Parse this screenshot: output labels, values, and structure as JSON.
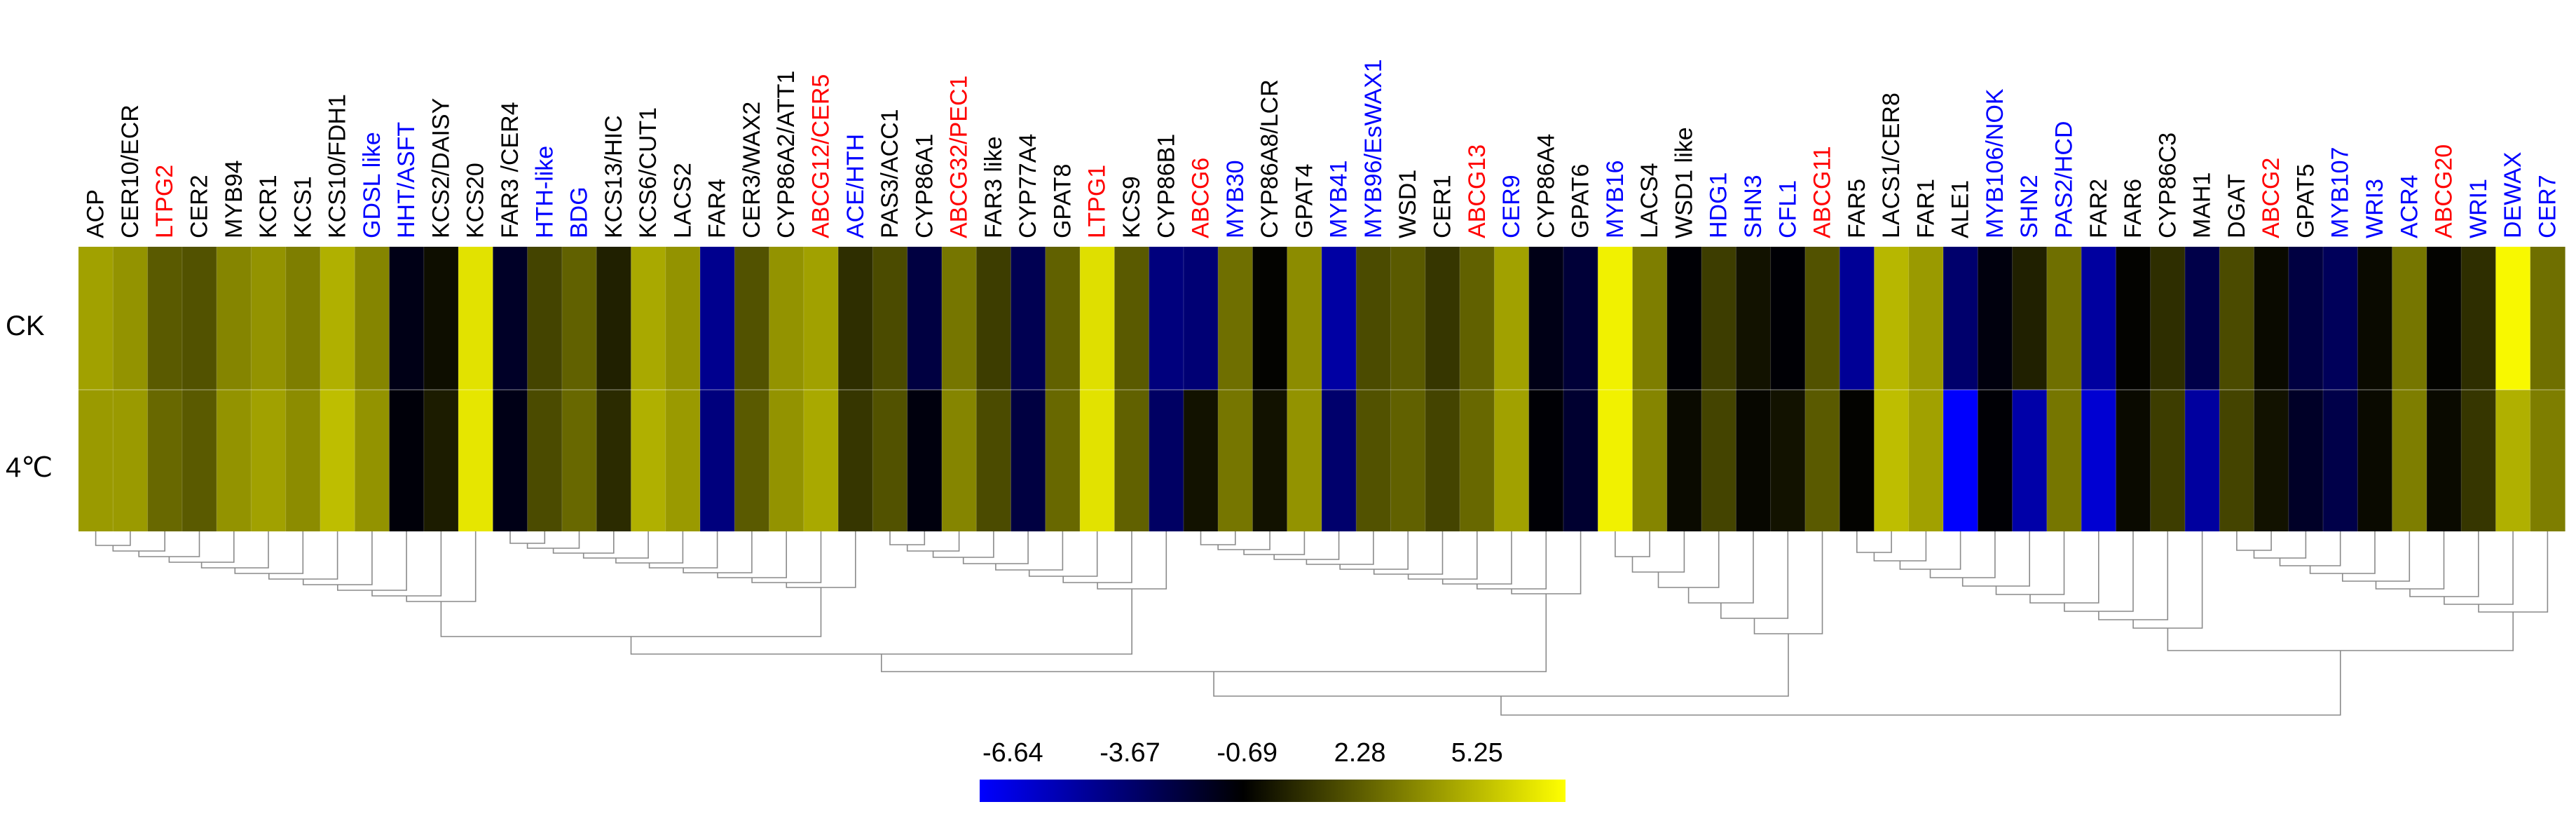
{
  "chart_data": {
    "type": "heatmap",
    "rows": [
      "CK",
      "4℃"
    ],
    "columns": [
      {
        "name": "ACP",
        "color": "black",
        "ck": 3.8,
        "cold": 3.6
      },
      {
        "name": "CER10/ECR",
        "color": "black",
        "ck": 3.4,
        "cold": 3.6
      },
      {
        "name": "LTPG2",
        "color": "red",
        "ck": 1.8,
        "cold": 2.2
      },
      {
        "name": "CER2",
        "color": "black",
        "ck": 1.6,
        "cold": 1.8
      },
      {
        "name": "MYB94",
        "color": "black",
        "ck": 3.0,
        "cold": 3.4
      },
      {
        "name": "KCR1",
        "color": "black",
        "ck": 3.4,
        "cold": 3.8
      },
      {
        "name": "KCS1",
        "color": "black",
        "ck": 2.8,
        "cold": 3.2
      },
      {
        "name": "KCS10/FDH1",
        "color": "black",
        "ck": 4.2,
        "cold": 4.6
      },
      {
        "name": "GDSL like",
        "color": "blue",
        "ck": 3.0,
        "cold": 3.4
      },
      {
        "name": "HHT/ASFT",
        "color": "blue",
        "ck": -1.2,
        "cold": -0.9
      },
      {
        "name": "KCS2/DAISY",
        "color": "black",
        "ck": -0.3,
        "cold": 0.1
      },
      {
        "name": "KCS20",
        "color": "black",
        "ck": 5.6,
        "cold": 5.7
      },
      {
        "name": "FAR3 /CER4",
        "color": "black",
        "ck": -1.6,
        "cold": -1.2
      },
      {
        "name": "HTH-like",
        "color": "blue",
        "ck": 1.2,
        "cold": 1.4
      },
      {
        "name": "BDG",
        "color": "blue",
        "ck": 2.0,
        "cold": 2.2
      },
      {
        "name": "KCS13/HIC",
        "color": "black",
        "ck": 0.2,
        "cold": 0.5
      },
      {
        "name": "KCS6/CUT1",
        "color": "black",
        "ck": 4.0,
        "cold": 4.2
      },
      {
        "name": "LACS2",
        "color": "black",
        "ck": 3.4,
        "cold": 3.6
      },
      {
        "name": "FAR4",
        "color": "black",
        "ck": -4.0,
        "cold": -3.6
      },
      {
        "name": "CER3/WAX2",
        "color": "black",
        "ck": 1.6,
        "cold": 1.8
      },
      {
        "name": "CYP86A2/ATT1",
        "color": "black",
        "ck": 3.4,
        "cold": 3.4
      },
      {
        "name": "ABCG12/CER5",
        "color": "red",
        "ck": 3.8,
        "cold": 4.0
      },
      {
        "name": "ACE/HTH",
        "color": "blue",
        "ck": 0.6,
        "cold": 0.8
      },
      {
        "name": "PAS3/ACC1",
        "color": "black",
        "ck": 1.4,
        "cold": 1.6
      },
      {
        "name": "CYP86A1",
        "color": "black",
        "ck": -2.2,
        "cold": -1.0
      },
      {
        "name": "ABCG32/PEC1",
        "color": "red",
        "ck": 2.6,
        "cold": 3.0
      },
      {
        "name": "FAR3 like",
        "color": "black",
        "ck": 1.0,
        "cold": 1.4
      },
      {
        "name": "CYP77A4",
        "color": "black",
        "ck": -2.6,
        "cold": -2.2
      },
      {
        "name": "GPAT8",
        "color": "black",
        "ck": 2.0,
        "cold": 2.2
      },
      {
        "name": "LTPG1",
        "color": "red",
        "ck": 5.5,
        "cold": 5.6
      },
      {
        "name": "KCS9",
        "color": "black",
        "ck": 1.8,
        "cold": 2.0
      },
      {
        "name": "CYP86B1",
        "color": "black",
        "ck": -3.6,
        "cold": -3.0
      },
      {
        "name": "ABCG6",
        "color": "red",
        "ck": -3.4,
        "cold": -0.2
      },
      {
        "name": "MYB30",
        "color": "blue",
        "ck": 2.4,
        "cold": 2.6
      },
      {
        "name": "CYP86A8/LCR",
        "color": "black",
        "ck": -0.6,
        "cold": -0.2
      },
      {
        "name": "GPAT4",
        "color": "black",
        "ck": 3.2,
        "cold": 3.4
      },
      {
        "name": "MYB41",
        "color": "blue",
        "ck": -4.5,
        "cold": -3.2
      },
      {
        "name": "MYB96/EsWAX1",
        "color": "blue",
        "ck": 1.4,
        "cold": 1.6
      },
      {
        "name": "WSD1",
        "color": "black",
        "ck": 1.8,
        "cold": 2.0
      },
      {
        "name": "CER1",
        "color": "black",
        "ck": 0.8,
        "cold": 1.2
      },
      {
        "name": "ABCG13",
        "color": "red",
        "ck": 2.0,
        "cold": 2.2
      },
      {
        "name": "CER9",
        "color": "blue",
        "ck": 3.8,
        "cold": 3.8
      },
      {
        "name": "CYP86A4",
        "color": "black",
        "ck": -1.2,
        "cold": -0.8
      },
      {
        "name": "GPAT6",
        "color": "black",
        "ck": -2.0,
        "cold": -1.8
      },
      {
        "name": "MYB16",
        "color": "blue",
        "ck": 6.0,
        "cold": 6.0
      },
      {
        "name": "LACS4",
        "color": "black",
        "ck": 2.8,
        "cold": 3.0
      },
      {
        "name": "WSD1 like",
        "color": "black",
        "ck": -0.8,
        "cold": -0.4
      },
      {
        "name": "HDG1",
        "color": "blue",
        "ck": 1.0,
        "cold": 1.2
      },
      {
        "name": "SHN3",
        "color": "blue",
        "ck": -0.2,
        "cold": -0.5
      },
      {
        "name": "CFL1",
        "color": "blue",
        "ck": -0.8,
        "cold": -0.2
      },
      {
        "name": "ABCG11",
        "color": "red",
        "ck": 1.6,
        "cold": 1.8
      },
      {
        "name": "FAR5",
        "color": "black",
        "ck": -4.2,
        "cold": -0.6
      },
      {
        "name": "LACS1/CER8",
        "color": "black",
        "ck": 4.4,
        "cold": 4.6
      },
      {
        "name": "FAR1",
        "color": "black",
        "ck": 3.6,
        "cold": 3.8
      },
      {
        "name": "ALE1",
        "color": "black",
        "ck": -3.2,
        "cold": -6.6
      },
      {
        "name": "MYB106/NOK",
        "color": "blue",
        "ck": -1.0,
        "cold": -0.8
      },
      {
        "name": "SHN2",
        "color": "blue",
        "ck": 0.2,
        "cold": -4.6
      },
      {
        "name": "PAS2/HCD",
        "color": "blue",
        "ck": 2.4,
        "cold": 2.6
      },
      {
        "name": "FAR2",
        "color": "black",
        "ck": -4.4,
        "cold": -5.6
      },
      {
        "name": "FAR6",
        "color": "black",
        "ck": -0.6,
        "cold": -0.4
      },
      {
        "name": "CYP86C3",
        "color": "black",
        "ck": 0.6,
        "cold": 1.0
      },
      {
        "name": "MAH1",
        "color": "black",
        "ck": -2.4,
        "cold": -4.4
      },
      {
        "name": "DGAT",
        "color": "black",
        "ck": 1.4,
        "cold": 1.2
      },
      {
        "name": "ABCG2",
        "color": "red",
        "ck": -0.4,
        "cold": -0.2
      },
      {
        "name": "GPAT5",
        "color": "black",
        "ck": -2.2,
        "cold": -1.6
      },
      {
        "name": "MYB107",
        "color": "blue",
        "ck": -2.8,
        "cold": -2.4
      },
      {
        "name": "WRI3",
        "color": "blue",
        "ck": -0.4,
        "cold": -0.4
      },
      {
        "name": "ACR4",
        "color": "blue",
        "ck": 2.6,
        "cold": 2.8
      },
      {
        "name": "ABCG20",
        "color": "red",
        "ck": -0.6,
        "cold": -0.4
      },
      {
        "name": "WRI1",
        "color": "blue",
        "ck": 0.6,
        "cold": 0.8
      },
      {
        "name": "DEWAX",
        "color": "blue",
        "ck": 6.2,
        "cold": 4.2
      },
      {
        "name": "CER7",
        "color": "blue",
        "ck": 2.4,
        "cold": 2.8
      }
    ],
    "color_scale": {
      "ticks": [
        "-6.64",
        "-3.67",
        "-0.69",
        "2.28",
        "5.25"
      ],
      "range": [
        -6.64,
        6.4
      ],
      "low_color": "#0000ff",
      "mid_color": "#000000",
      "high_color": "#ffff00"
    }
  }
}
